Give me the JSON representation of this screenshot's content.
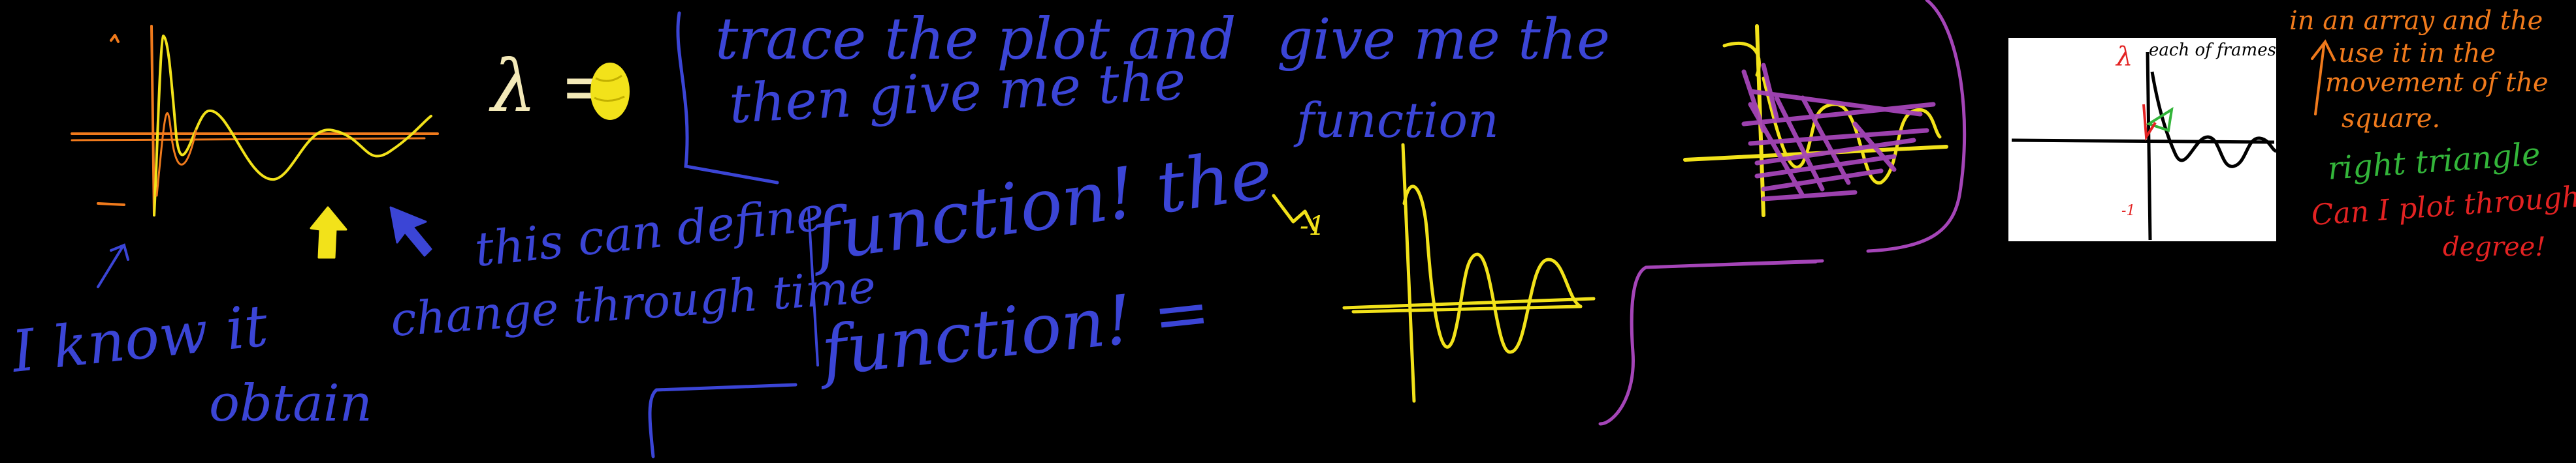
{
  "colors": {
    "background": "#000000",
    "blue": "#3b45d6",
    "yellow": "#f2e21a",
    "orange": "#f07a1c",
    "purple": "#a545b8",
    "green": "#33b53a",
    "red": "#e32222",
    "white": "#ffffff",
    "cream": "#f3e9b8"
  },
  "notes": {
    "lambda_eq": "λ =",
    "i_know_it": "I know it",
    "obtain": "obtain",
    "this_can_define": "this can define",
    "change_through_time": "change through time",
    "trace_line1": "trace the plot and",
    "trace_line2": "then give me the",
    "give_me_the": "give me the",
    "function_small": "function",
    "function_big1": "function! the",
    "function_big2": "function! =",
    "tick_mark": "-1",
    "in_array_line1": "in an array and the",
    "in_array_line2": "use it in the",
    "in_array_line3": "movement of the",
    "in_array_line4": "square.",
    "right_triangle": "right triangle",
    "can_plot_line1": "Can I plot through",
    "can_plot_line2": "degree!"
  },
  "thumbnail": {
    "lambda": "λ",
    "caption": "each of frames",
    "tick": "-1"
  },
  "icons": {
    "sun": "sun-scribble",
    "yellow_cursor": "arrow-cursor",
    "blue_cursor": "arrow-cursor"
  }
}
